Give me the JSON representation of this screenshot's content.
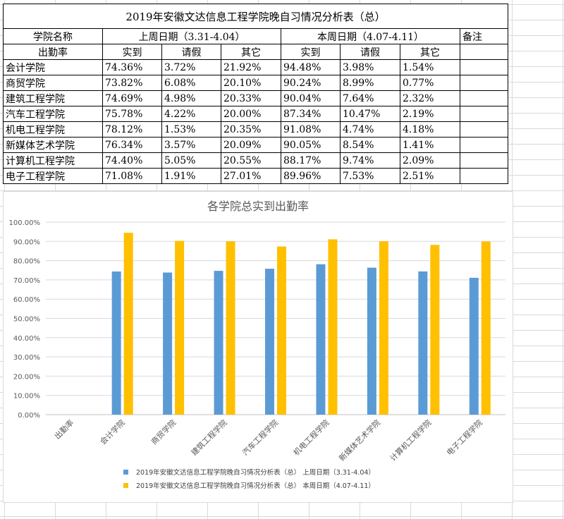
{
  "table": {
    "title": "2019年安徽文达信息工程学院晚自习情况分析表（总）",
    "header_row1": [
      "学院名称",
      "上周日期（3.31-4.04）",
      "本周日期（4.07-4.11）",
      "备注"
    ],
    "header_row2": [
      "出勤率",
      "实到",
      "请假",
      "其它",
      "实到",
      "请假",
      "其它",
      ""
    ],
    "rows": [
      [
        "会计学院",
        "74.36%",
        "3.72%",
        "21.92%",
        "94.48%",
        "3.98%",
        "1.54%"
      ],
      [
        "商贸学院",
        "73.82%",
        "6.08%",
        "20.10%",
        "90.24%",
        "8.99%",
        "0.77%"
      ],
      [
        "建筑工程学院",
        "74.69%",
        "4.98%",
        "20.33%",
        "90.04%",
        "7.64%",
        "2.32%"
      ],
      [
        "汽车工程学院",
        "75.78%",
        "4.22%",
        "20.00%",
        "87.34%",
        "10.47%",
        "2.19%"
      ],
      [
        "机电工程学院",
        "78.12%",
        "1.53%",
        "20.35%",
        "91.08%",
        "4.74%",
        "4.18%"
      ],
      [
        "新媒体艺术学院",
        "76.34%",
        "3.57%",
        "20.09%",
        "90.05%",
        "8.54%",
        "1.41%"
      ],
      [
        "计算机工程学院",
        "74.40%",
        "5.05%",
        "20.55%",
        "88.17%",
        "9.74%",
        "2.09%"
      ],
      [
        "电子工程学院",
        "71.08%",
        "1.91%",
        "27.01%",
        "89.96%",
        "7.53%",
        "2.51%"
      ]
    ]
  },
  "chart_data": {
    "type": "bar",
    "title": "各学院总实到出勤率",
    "categories": [
      "出勤率",
      "会计学院",
      "商贸学院",
      "建筑工程学院",
      "汽车工程学院",
      "机电工程学院",
      "新媒体艺术学院",
      "计算机工程学院",
      "电子工程学院"
    ],
    "series": [
      {
        "name": "2019年安徽文达信息工程学院晚自习情况分析表（总） 上周日期（3.31-4.04）",
        "color": "#5B9BD5",
        "values": [
          null,
          74.36,
          73.82,
          74.69,
          75.78,
          78.12,
          76.34,
          74.4,
          71.08
        ]
      },
      {
        "name": "2019年安徽文达信息工程学院晚自习情况分析表（总） 本周日期（4.07-4.11）",
        "color": "#FFC000",
        "values": [
          null,
          94.48,
          90.24,
          90.04,
          87.34,
          91.08,
          90.05,
          88.17,
          89.96
        ]
      }
    ],
    "ylim": [
      0,
      100
    ],
    "ytick_labels": [
      "0.00%",
      "10.00%",
      "20.00%",
      "30.00%",
      "40.00%",
      "50.00%",
      "60.00%",
      "70.00%",
      "80.00%",
      "90.00%",
      "100.00%"
    ],
    "grid": true,
    "legend_position": "bottom"
  }
}
